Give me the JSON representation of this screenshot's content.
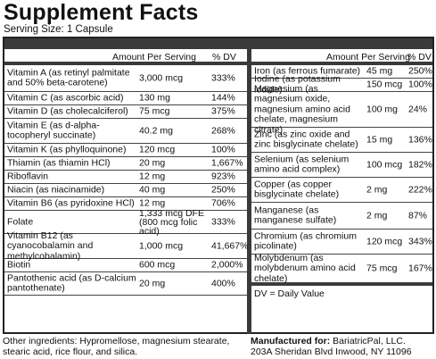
{
  "title": "Supplement Facts",
  "serving_size": "Serving Size: 1 Capsule",
  "headers": {
    "amount": "Amount Per Serving",
    "dv": "% DV"
  },
  "left_rows": [
    {
      "name": "Vitamin A (as retinyl palmitate and 50% beta-carotene)",
      "amount": "3,000 mcg",
      "dv": "333%",
      "h": 30
    },
    {
      "name": "Vitamin C (as ascorbic acid)",
      "amount": "130 mg",
      "dv": "144%",
      "h": 15
    },
    {
      "name": "Vitamin D (as cholecalciferol)",
      "amount": "75 mcg",
      "dv": "375%",
      "h": 15
    },
    {
      "name": "Vitamin E (as d-alpha-tocopheryl succinate)",
      "amount": "40.2 mg",
      "dv": "268%",
      "h": 28
    },
    {
      "name": "Vitamin K (as phylloquinone)",
      "amount": "120 mcg",
      "dv": "100%",
      "h": 15
    },
    {
      "name": "Thiamin (as thiamin HCl)",
      "amount": "20 mg",
      "dv": "1,667%",
      "h": 15
    },
    {
      "name": "Riboflavin",
      "amount": "12 mg",
      "dv": "923%",
      "h": 15
    },
    {
      "name": "Niacin (as niacinamide)",
      "amount": "40 mg",
      "dv": "250%",
      "h": 15
    },
    {
      "name": "Vitamin B6 (as pyridoxine HCl)",
      "amount": "12 mg",
      "dv": "706%",
      "h": 15
    },
    {
      "name": "Folate",
      "amount": "1,333 mcg DFE (800 mcg folic acid)",
      "dv": "333%",
      "h": 26
    },
    {
      "name": "Vitamin B12 (as cyanocobalamin and methylcobalamin)",
      "amount": "1,000 mcg",
      "dv": "41,667%",
      "h": 28
    },
    {
      "name": "Biotin",
      "amount": "600 mcg",
      "dv": "2,000%",
      "h": 15
    },
    {
      "name": "Pantothenic acid (as D-calcium pantothenate)",
      "amount": "20 mg",
      "dv": "400%",
      "h": 26
    }
  ],
  "right_rows": [
    {
      "name": "Iron (as ferrous fumarate)",
      "amount": "45 mg",
      "dv": "250%",
      "h": 15
    },
    {
      "name": "Iodine (as potassium iodide)",
      "amount": "150 mcg",
      "dv": "100%",
      "h": 15
    },
    {
      "name": "Magnesium (as magnesium oxide, magnesium amino acid chelate, magnesium citrate)",
      "amount": "100 mg",
      "dv": "24%",
      "h": 40
    },
    {
      "name": "Zinc (as zinc oxide and zinc bisglycinate chelate)",
      "amount": "15 mg",
      "dv": "136%",
      "h": 28
    },
    {
      "name": "Selenium (as selenium amino acid complex)",
      "amount": "100 mcg",
      "dv": "182%",
      "h": 28
    },
    {
      "name": "Copper (as copper bisglycinate chelate)",
      "amount": "2 mg",
      "dv": "222%",
      "h": 28
    },
    {
      "name": "Manganese (as manganese sulfate)",
      "amount": "2 mg",
      "dv": "87%",
      "h": 30
    },
    {
      "name": "Chromium (as chromium picolinate)",
      "amount": "120 mcg",
      "dv": "343%",
      "h": 28
    },
    {
      "name": "Molybdenum (as molybdenum amino acid chelate)",
      "amount": "75 mcg",
      "dv": "167%",
      "h": 32
    }
  ],
  "dv_note": "DV = Daily Value",
  "other_ingredients": "Other ingredients: Hypromellose, magnesium stearate, stearic acid, rice flour, and silica.",
  "manufacturer_label": "Manufactured for:",
  "manufacturer_name": "BariatricPal, LLC.",
  "manufacturer_address": "203A Sheridan Blvd  Inwood, NY 11096"
}
